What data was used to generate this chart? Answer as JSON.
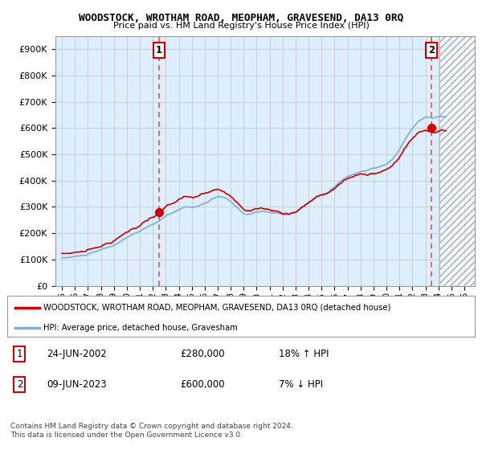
{
  "title": "WOODSTOCK, WROTHAM ROAD, MEOPHAM, GRAVESEND, DA13 0RQ",
  "subtitle": "Price paid vs. HM Land Registry's House Price Index (HPI)",
  "ylim": [
    0,
    950000
  ],
  "yticks": [
    0,
    100000,
    200000,
    300000,
    400000,
    500000,
    600000,
    700000,
    800000,
    900000
  ],
  "xlim_min": 1994.5,
  "xlim_max": 2026.8,
  "hatch_start": 2024.1,
  "marker1_x": 2002.48,
  "marker1_y": 280000,
  "marker2_x": 2023.44,
  "marker2_y": 600000,
  "line1_color": "#cc0000",
  "line2_color": "#7aadda",
  "marker_color": "#cc0000",
  "annotation_box_color": "#cc0000",
  "dashed_line_color": "#dd4444",
  "grid_color": "#cccccc",
  "bg_color": "#ddeeff",
  "hatch_bg": "#e8e8e8",
  "legend_line1": "WOODSTOCK, WROTHAM ROAD, MEOPHAM, GRAVESEND, DA13 0RQ (detached house)",
  "legend_line2": "HPI: Average price, detached house, Gravesham",
  "table_row1_num": "1",
  "table_row1_date": "24-JUN-2002",
  "table_row1_price": "£280,000",
  "table_row1_hpi": "18% ↑ HPI",
  "table_row2_num": "2",
  "table_row2_date": "09-JUN-2023",
  "table_row2_price": "£600,000",
  "table_row2_hpi": "7% ↓ HPI",
  "footer": "Contains HM Land Registry data © Crown copyright and database right 2024.\nThis data is licensed under the Open Government Licence v3.0."
}
